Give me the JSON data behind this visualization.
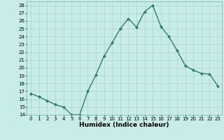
{
  "x": [
    0,
    1,
    2,
    3,
    4,
    5,
    6,
    7,
    8,
    9,
    10,
    11,
    12,
    13,
    14,
    15,
    16,
    17,
    18,
    19,
    20,
    21,
    22,
    23
  ],
  "y": [
    16.7,
    16.3,
    15.8,
    15.3,
    15.0,
    14.0,
    14.0,
    17.0,
    19.1,
    21.5,
    23.2,
    25.0,
    26.3,
    25.2,
    27.2,
    28.0,
    25.3,
    24.0,
    22.2,
    20.3,
    19.7,
    19.3,
    19.2,
    17.7
  ],
  "line_color": "#2e7d6e",
  "marker": "D",
  "marker_size": 2.0,
  "linewidth": 1.0,
  "xlabel": "Humidex (Indice chaleur)",
  "xlim": [
    -0.5,
    23.5
  ],
  "ylim": [
    14,
    28.5
  ],
  "yticks": [
    14,
    15,
    16,
    17,
    18,
    19,
    20,
    21,
    22,
    23,
    24,
    25,
    26,
    27,
    28
  ],
  "xticks": [
    0,
    1,
    2,
    3,
    4,
    5,
    6,
    7,
    8,
    9,
    10,
    11,
    12,
    13,
    14,
    15,
    16,
    17,
    18,
    19,
    20,
    21,
    22,
    23
  ],
  "bg_color": "#c8ece8",
  "grid_color": "#a8d4ce",
  "tick_fontsize": 5.0,
  "xlabel_fontsize": 6.5
}
